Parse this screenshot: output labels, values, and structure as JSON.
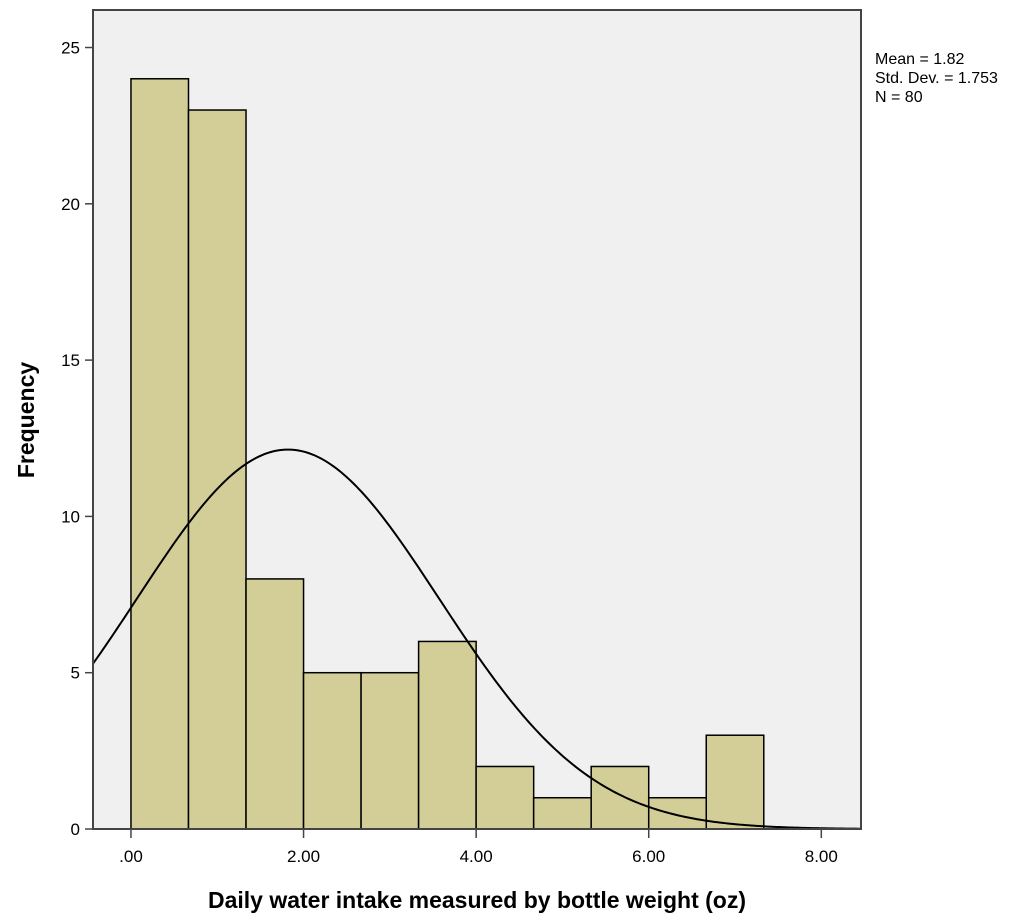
{
  "chart_data": {
    "type": "histogram",
    "xlabel": "Daily water intake measured by bottle weight (oz)",
    "ylabel": "Frequency",
    "xlim": [
      -0.44,
      8.46
    ],
    "ylim": [
      0,
      26.2
    ],
    "x_ticks": [
      0,
      2,
      4,
      6,
      8
    ],
    "x_tick_labels": [
      ".00",
      "2.00",
      "4.00",
      "6.00",
      "8.00"
    ],
    "y_ticks": [
      0,
      5,
      10,
      15,
      20,
      25
    ],
    "y_tick_labels": [
      "0",
      "5",
      "10",
      "15",
      "20",
      "25"
    ],
    "bin_width": 0.6667,
    "bins": [
      {
        "start": 0.0,
        "end": 0.6667,
        "count": 24
      },
      {
        "start": 0.6667,
        "end": 1.3333,
        "count": 23
      },
      {
        "start": 1.3333,
        "end": 2.0,
        "count": 8
      },
      {
        "start": 2.0,
        "end": 2.6667,
        "count": 5
      },
      {
        "start": 2.6667,
        "end": 3.3333,
        "count": 5
      },
      {
        "start": 3.3333,
        "end": 4.0,
        "count": 6
      },
      {
        "start": 4.0,
        "end": 4.6667,
        "count": 2
      },
      {
        "start": 4.6667,
        "end": 5.3333,
        "count": 1
      },
      {
        "start": 5.3333,
        "end": 6.0,
        "count": 2
      },
      {
        "start": 6.0,
        "end": 6.6667,
        "count": 1
      },
      {
        "start": 6.6667,
        "end": 7.3333,
        "count": 3
      }
    ],
    "normal_curve": {
      "mean": 1.82,
      "sd": 1.753,
      "n": 80
    },
    "stats_text": [
      "Mean = 1.82",
      "Std. Dev. = 1.753",
      "N = 80"
    ],
    "grid": false,
    "colors": {
      "plot_background": "#F0F0F0",
      "bar_fill": "#D3CE97",
      "bar_stroke": "#000000",
      "curve": "#000000",
      "frame": "#444444"
    }
  }
}
